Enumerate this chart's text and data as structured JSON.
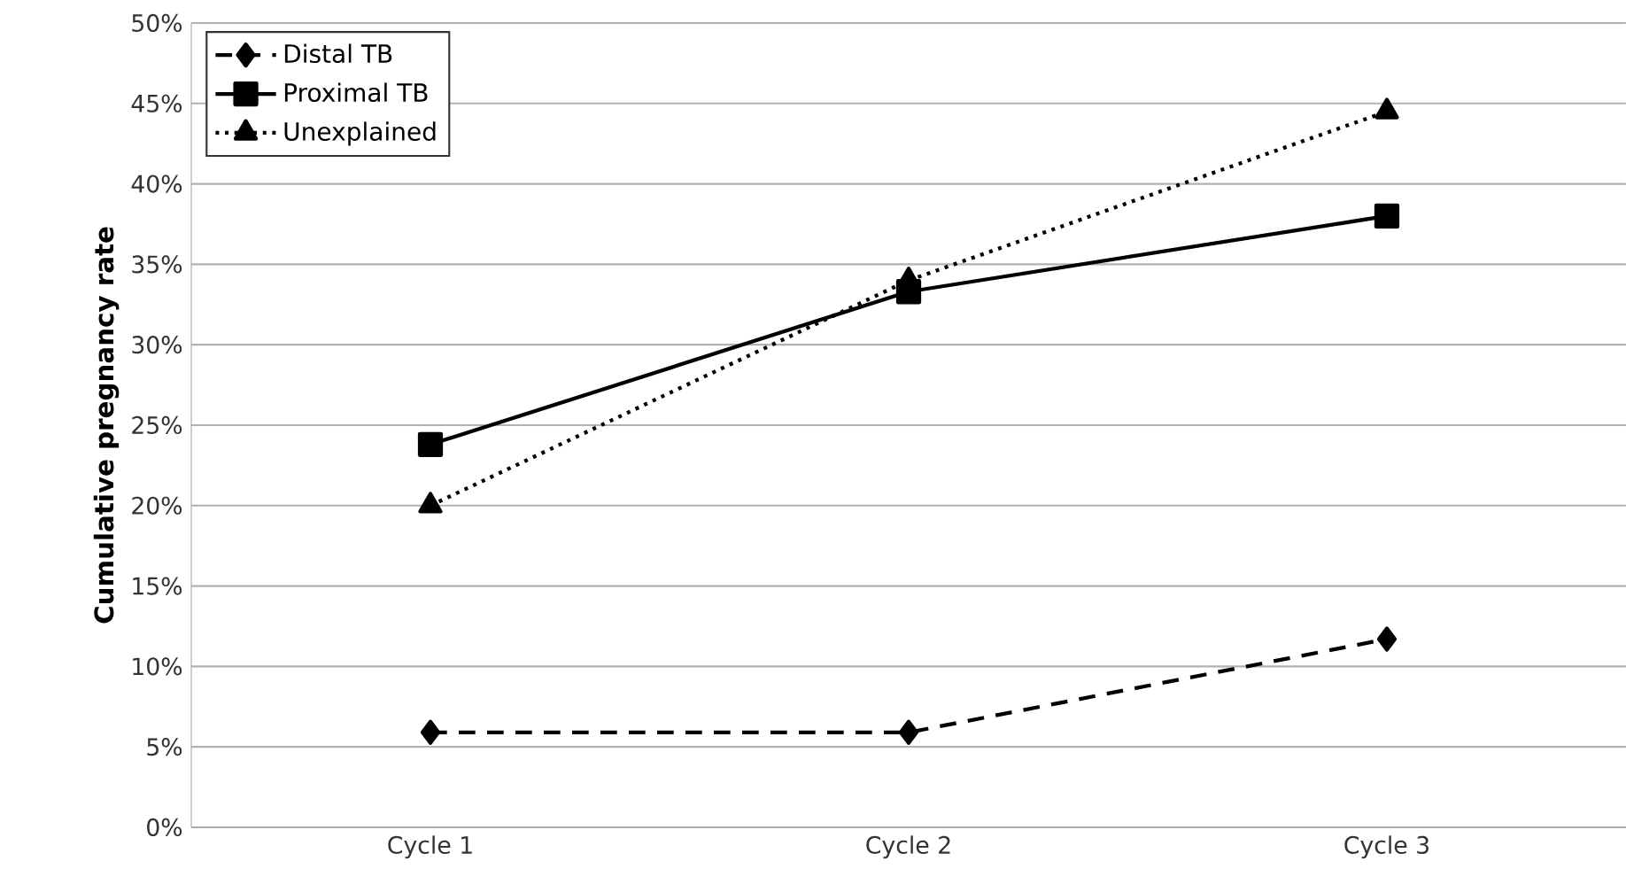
{
  "chart_data": {
    "type": "line",
    "ylabel": "Cumulative pregnancy rate",
    "categories": [
      "Cycle 1",
      "Cycle 2",
      "Cycle 3"
    ],
    "series": [
      {
        "name": "Distal TB",
        "color": "#000000",
        "marker": "diamond",
        "line_style": "dashed",
        "values": [
          5.9,
          5.9,
          11.7
        ]
      },
      {
        "name": "Proximal TB",
        "color": "#000000",
        "marker": "square",
        "line_style": "solid",
        "values": [
          23.8,
          33.3,
          38.0
        ]
      },
      {
        "name": "Unexplained",
        "color": "#000000",
        "marker": "triangle",
        "line_style": "dotted",
        "values": [
          20.0,
          34.0,
          44.5
        ]
      }
    ],
    "ylim": [
      0,
      50
    ],
    "yticks": [
      {
        "value": 0,
        "label": "0%"
      },
      {
        "value": 5,
        "label": "5%"
      },
      {
        "value": 10,
        "label": "10%"
      },
      {
        "value": 15,
        "label": "15%"
      },
      {
        "value": 20,
        "label": "20%"
      },
      {
        "value": 25,
        "label": "25%"
      },
      {
        "value": 30,
        "label": "30%"
      },
      {
        "value": 35,
        "label": "35%"
      },
      {
        "value": 40,
        "label": "40%"
      },
      {
        "value": 45,
        "label": "45%"
      },
      {
        "value": 50,
        "label": "50%"
      }
    ],
    "grid": "y",
    "legend": "top left"
  }
}
